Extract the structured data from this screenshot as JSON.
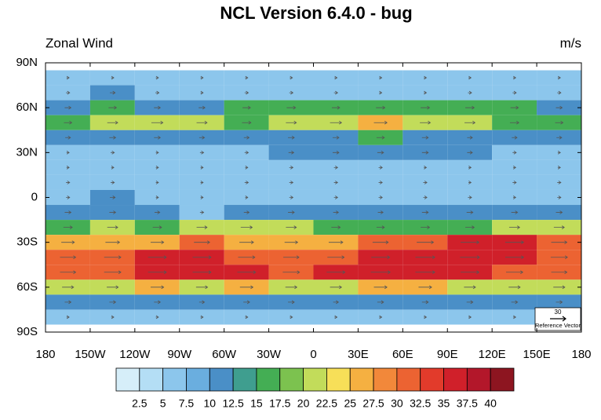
{
  "chart_data": {
    "type": "contour-map",
    "title": "NCL Version 6.4.0 - bug",
    "left_string": "Zonal Wind",
    "right_string": "m/s",
    "xlim": [
      -180,
      180
    ],
    "ylim": [
      -90,
      90
    ],
    "xticks": [
      {
        "value": -180,
        "label": "180"
      },
      {
        "value": -150,
        "label": "150W"
      },
      {
        "value": -120,
        "label": "120W"
      },
      {
        "value": -90,
        "label": "90W"
      },
      {
        "value": -60,
        "label": "60W"
      },
      {
        "value": -30,
        "label": "30W"
      },
      0,
      {
        "value": 30,
        "label": "30E"
      },
      {
        "value": 60,
        "label": "60E"
      },
      {
        "value": 90,
        "label": "90E"
      },
      {
        "value": 120,
        "label": "120E"
      },
      {
        "value": 150,
        "label": "150E"
      },
      {
        "value": 180,
        "label": "180"
      }
    ],
    "yticks": [
      {
        "value": 90,
        "label": "90N"
      },
      {
        "value": 60,
        "label": "60N"
      },
      {
        "value": 30,
        "label": "30N"
      },
      0,
      {
        "value": -30,
        "label": "30S"
      },
      {
        "value": -60,
        "label": "60S"
      },
      {
        "value": -90,
        "label": "90S"
      }
    ],
    "levels": [
      2.5,
      5,
      7.5,
      10,
      12.5,
      15,
      17.5,
      20,
      22.5,
      25,
      27.5,
      30,
      32.5,
      35,
      37.5,
      40
    ],
    "colors": [
      "#d6eef9",
      "#b4def5",
      "#8cc6ec",
      "#6aaedf",
      "#4a8fc7",
      "#3f9e8f",
      "#44ae54",
      "#7cc24f",
      "#c2dc5a",
      "#f7df58",
      "#f5b041",
      "#f2883a",
      "#ec6332",
      "#e23b2b",
      "#d0202a",
      "#b3172a",
      "#8d1520"
    ],
    "lons": [
      -165,
      -135,
      -105,
      -75,
      -45,
      -15,
      15,
      45,
      75,
      105,
      135,
      165
    ],
    "lats": [
      80,
      70,
      60,
      50,
      40,
      30,
      20,
      10,
      0,
      -10,
      -20,
      -30,
      -40,
      -50,
      -60,
      -70,
      -80
    ],
    "field": [
      [
        5,
        5,
        5,
        5,
        5,
        5,
        5,
        5,
        5,
        5,
        5,
        5
      ],
      [
        7,
        10,
        7,
        5,
        7,
        7,
        7,
        5,
        5,
        7,
        7,
        7
      ],
      [
        12,
        15,
        12,
        12,
        15,
        17,
        15,
        17,
        17,
        17,
        15,
        12
      ],
      [
        15,
        20,
        22,
        20,
        17,
        20,
        22,
        25,
        20,
        20,
        17,
        15
      ],
      [
        10,
        12,
        12,
        10,
        10,
        12,
        12,
        15,
        12,
        10,
        10,
        10
      ],
      [
        5,
        7,
        5,
        7,
        7,
        10,
        12,
        12,
        12,
        10,
        7,
        5
      ],
      [
        5,
        5,
        5,
        5,
        5,
        7,
        7,
        7,
        5,
        5,
        5,
        5
      ],
      [
        7,
        7,
        5,
        5,
        7,
        7,
        7,
        7,
        7,
        5,
        7,
        7
      ],
      [
        7,
        10,
        5,
        5,
        5,
        7,
        7,
        7,
        7,
        7,
        5,
        7
      ],
      [
        12,
        12,
        10,
        7,
        10,
        12,
        10,
        10,
        12,
        12,
        12,
        12
      ],
      [
        17,
        20,
        17,
        20,
        22,
        20,
        17,
        15,
        17,
        17,
        20,
        20
      ],
      [
        25,
        27,
        25,
        30,
        27,
        25,
        27,
        30,
        32,
        35,
        35,
        30
      ],
      [
        30,
        32,
        35,
        35,
        32,
        30,
        32,
        35,
        37,
        37,
        35,
        32
      ],
      [
        30,
        32,
        35,
        35,
        35,
        32,
        35,
        37,
        37,
        35,
        32,
        30
      ],
      [
        22,
        22,
        25,
        22,
        25,
        22,
        22,
        25,
        25,
        22,
        22,
        22
      ],
      [
        12,
        12,
        12,
        10,
        12,
        12,
        10,
        12,
        12,
        12,
        12,
        12
      ],
      [
        5,
        5,
        5,
        5,
        5,
        5,
        5,
        5,
        5,
        5,
        5,
        5
      ]
    ],
    "reference_vector": {
      "magnitude": 30,
      "label": "Reference Vector"
    }
  }
}
